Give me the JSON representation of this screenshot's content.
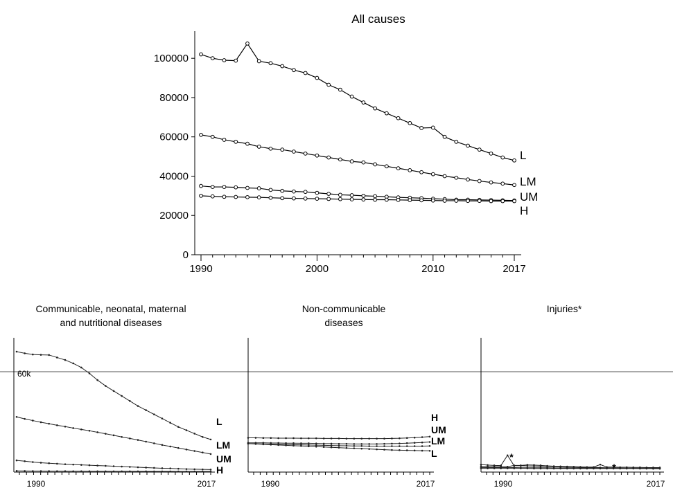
{
  "chart_data": [
    {
      "type": "line",
      "title": "All causes",
      "xlabel": "",
      "ylabel": "",
      "x": [
        1990,
        1991,
        1992,
        1993,
        1994,
        1995,
        1996,
        1997,
        1998,
        1999,
        2000,
        2001,
        2002,
        2003,
        2004,
        2005,
        2006,
        2007,
        2008,
        2009,
        2010,
        2011,
        2012,
        2013,
        2014,
        2015,
        2016,
        2017
      ],
      "xlim": [
        1990,
        2017
      ],
      "ylim": [
        0,
        105000
      ],
      "xticks": [
        "1990",
        "2000",
        "2010",
        "2017"
      ],
      "yticks": [
        "0",
        "20000",
        "40000",
        "60000",
        "80000",
        "100000"
      ],
      "series": [
        {
          "name": "L",
          "values": [
            102000,
            100000,
            99000,
            98800,
            107500,
            98500,
            97500,
            96000,
            94000,
            92500,
            90000,
            86500,
            84000,
            80500,
            77500,
            74500,
            72000,
            69500,
            67000,
            64500,
            64700,
            60000,
            57500,
            55500,
            53500,
            51500,
            49500,
            48000
          ]
        },
        {
          "name": "LM",
          "values": [
            61000,
            60000,
            58500,
            57500,
            56500,
            55000,
            54000,
            53500,
            52500,
            51500,
            50500,
            49500,
            48500,
            47500,
            47000,
            46000,
            45000,
            44000,
            43000,
            42000,
            41000,
            40000,
            39200,
            38300,
            37500,
            36800,
            36200,
            35500
          ]
        },
        {
          "name": "UM",
          "values": [
            35000,
            34500,
            34500,
            34300,
            34000,
            33800,
            33000,
            32500,
            32200,
            32000,
            31500,
            31000,
            30500,
            30300,
            30000,
            29800,
            29500,
            29200,
            29000,
            28800,
            28500,
            28300,
            28000,
            28000,
            27900,
            27800,
            27700,
            27600
          ]
        },
        {
          "name": "H",
          "values": [
            30000,
            29700,
            29500,
            29400,
            29300,
            29200,
            29000,
            28800,
            28700,
            28600,
            28500,
            28400,
            28300,
            28200,
            28100,
            28000,
            28000,
            27900,
            27800,
            27700,
            27600,
            27500,
            27500,
            27400,
            27400,
            27300,
            27300,
            27300
          ]
        }
      ]
    },
    {
      "type": "line",
      "title_lines": [
        "Communicable, neonatal, maternal",
        "and nutritional diseases"
      ],
      "x_start": 1990,
      "x_end": 2017,
      "xticks": [
        "1990",
        "2017"
      ],
      "ytick": "60k",
      "ylim": [
        0,
        75000
      ],
      "reference_line": 60000,
      "series": [
        {
          "name": "L",
          "values": [
            72000,
            71000,
            70300,
            70100,
            70000,
            68500,
            67000,
            65000,
            62500,
            59000,
            55000,
            51500,
            48500,
            45500,
            42500,
            39500,
            37000,
            34500,
            32000,
            29500,
            27000,
            25000,
            23000,
            21000,
            19500
          ]
        },
        {
          "name": "LM",
          "values": [
            33000,
            31800,
            30800,
            29800,
            28900,
            28000,
            27200,
            26300,
            25500,
            24700,
            23800,
            22900,
            22000,
            21000,
            20100,
            19200,
            18200,
            17200,
            16200,
            15300,
            14400,
            13500,
            12600,
            11700,
            10800
          ]
        },
        {
          "name": "UM",
          "values": [
            7000,
            6500,
            6000,
            5600,
            5300,
            5000,
            4700,
            4500,
            4300,
            4100,
            3900,
            3700,
            3500,
            3300,
            3100,
            2900,
            2700,
            2500,
            2300,
            2200,
            2000,
            1800,
            1700,
            1600,
            1500
          ]
        },
        {
          "name": "H",
          "values": [
            700,
            650,
            620,
            600,
            580,
            560,
            540,
            520,
            500,
            490,
            480,
            470,
            460,
            450,
            440,
            430,
            420,
            410,
            400,
            390,
            380,
            370,
            360,
            350,
            340
          ]
        }
      ]
    },
    {
      "type": "line",
      "title_lines": [
        "Non-communicable",
        "diseases"
      ],
      "x_start": 1990,
      "x_end": 2017,
      "xticks": [
        "1990",
        "2017"
      ],
      "ylim": [
        0,
        75000
      ],
      "reference_line": 60000,
      "series": [
        {
          "name": "H",
          "values": [
            20500,
            20500,
            20400,
            20400,
            20300,
            20300,
            20300,
            20200,
            20200,
            20200,
            20100,
            20100,
            20100,
            20000,
            20000,
            20000,
            20000,
            20000,
            20000,
            20100,
            20200,
            20400,
            20600,
            20900,
            21200
          ]
        },
        {
          "name": "UM",
          "values": [
            17500,
            17500,
            17500,
            17400,
            17400,
            17300,
            17300,
            17200,
            17200,
            17100,
            17000,
            17000,
            16900,
            16900,
            16800,
            16800,
            16800,
            16800,
            16900,
            17000,
            17100,
            17300,
            17500,
            17700,
            18000
          ]
        },
        {
          "name": "LM",
          "values": [
            17000,
            16900,
            16800,
            16700,
            16600,
            16500,
            16400,
            16300,
            16200,
            16100,
            16000,
            15900,
            15800,
            15700,
            15600,
            15600,
            15500,
            15500,
            15500,
            15500,
            15500,
            15500,
            15500,
            15500,
            15600
          ]
        },
        {
          "name": "L",
          "values": [
            17000,
            16800,
            16600,
            16400,
            16200,
            16000,
            15800,
            15600,
            15400,
            15200,
            15000,
            14800,
            14600,
            14400,
            14200,
            14000,
            13800,
            13600,
            13400,
            13200,
            13100,
            13000,
            12900,
            12800,
            12700
          ]
        }
      ]
    },
    {
      "type": "line",
      "title_lines": [
        "Injuries*"
      ],
      "x_start": 1990,
      "x_end": 2017,
      "xticks": [
        "1990",
        "2017"
      ],
      "ylim": [
        0,
        75000
      ],
      "reference_line": 60000,
      "annotations": [
        "*",
        "*"
      ],
      "series": [
        {
          "name": "L",
          "values": [
            4500,
            4200,
            4000,
            3900,
            10000,
            3800,
            3800,
            3700,
            3600,
            3500,
            3400,
            3200,
            3100,
            3000,
            3000,
            2900,
            2900,
            2800,
            2700,
            2600,
            2500,
            2400,
            2300,
            2200,
            2100,
            2100,
            2000,
            2000
          ]
        },
        {
          "name": "LM",
          "values": [
            3500,
            3400,
            3300,
            3300,
            3200,
            4000,
            4000,
            4300,
            4200,
            4000,
            3700,
            3500,
            3400,
            3300,
            3200,
            3100,
            3000,
            3000,
            4500,
            3000,
            3000,
            2900,
            2900,
            2800,
            2800,
            2700,
            2700,
            2700
          ]
        },
        {
          "name": "UM",
          "values": [
            2700,
            2700,
            2700,
            2700,
            2700,
            2700,
            2600,
            2600,
            2600,
            2600,
            2600,
            2500,
            2500,
            2500,
            2500,
            2500,
            2500,
            2500,
            2500,
            2400,
            2400,
            2400,
            2400,
            2400,
            2400,
            2400,
            2400,
            2400
          ]
        },
        {
          "name": "H",
          "values": [
            2200,
            2200,
            2200,
            2200,
            2200,
            2200,
            2200,
            2200,
            2100,
            2100,
            2100,
            2100,
            2100,
            2100,
            2100,
            2100,
            2100,
            2100,
            2100,
            2100,
            2100,
            2100,
            2100,
            2100,
            2100,
            2100,
            2100,
            2100
          ]
        }
      ]
    }
  ]
}
